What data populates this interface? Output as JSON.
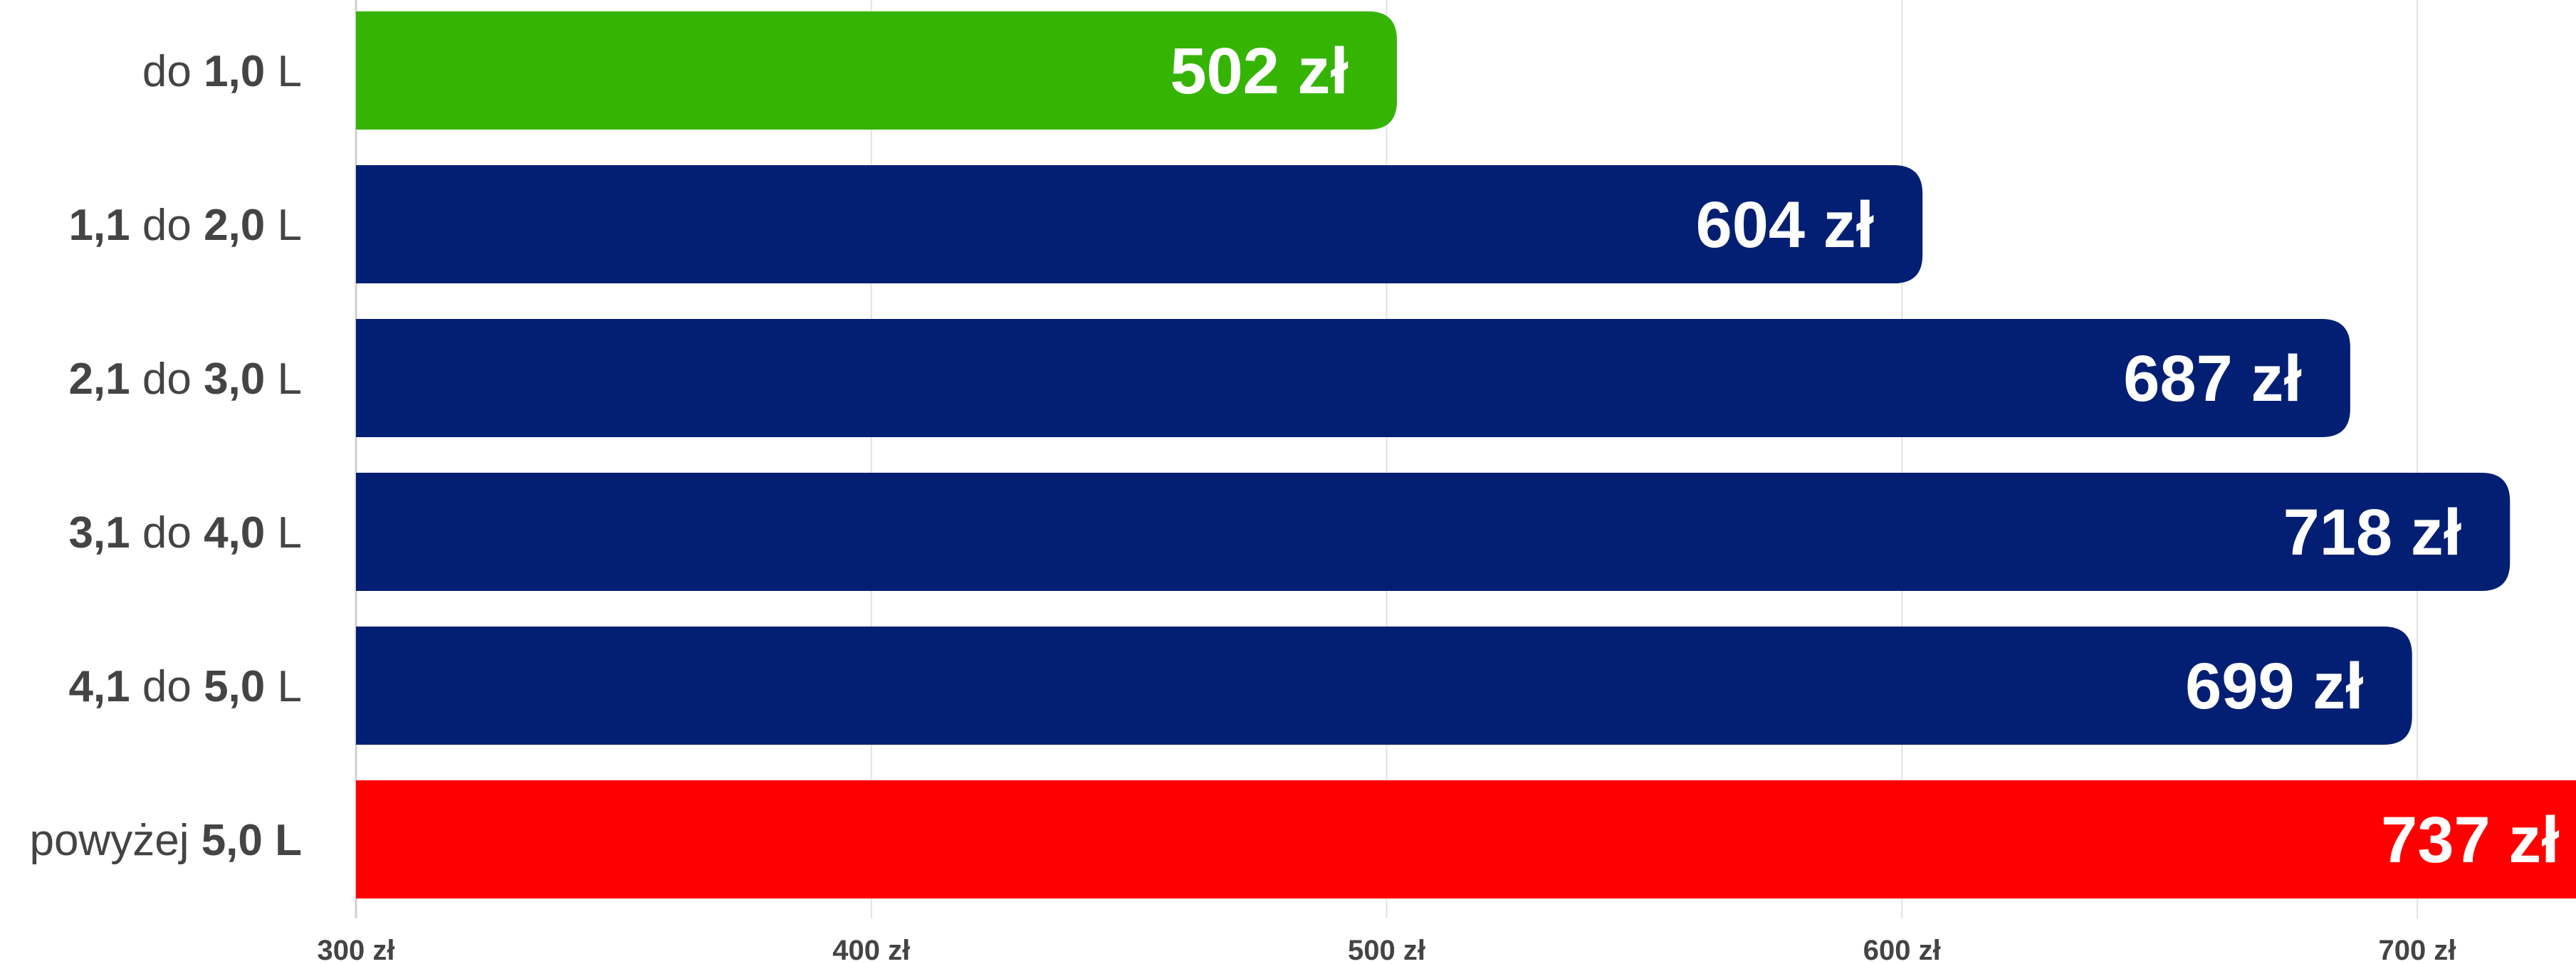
{
  "chart_data": {
    "type": "bar",
    "orientation": "horizontal",
    "title": "",
    "xlabel": "",
    "ylabel": "",
    "xlim": [
      300,
      730
    ],
    "grid": true,
    "legend": "none",
    "ticks": [
      300,
      400,
      500,
      600,
      700
    ],
    "tick_labels": [
      "300 zł",
      "400 zł",
      "500 zł",
      "600 zł",
      "700 zł"
    ],
    "categories": [
      {
        "parts": [
          {
            "text": "do ",
            "bold": false
          },
          {
            "text": "1,0",
            "bold": true
          },
          {
            "text": " L",
            "bold": false
          }
        ]
      },
      {
        "parts": [
          {
            "text": "1,1",
            "bold": true
          },
          {
            "text": " do ",
            "bold": false
          },
          {
            "text": "2,0",
            "bold": true
          },
          {
            "text": " L",
            "bold": false
          }
        ]
      },
      {
        "parts": [
          {
            "text": "2,1",
            "bold": true
          },
          {
            "text": " do ",
            "bold": false
          },
          {
            "text": "3,0",
            "bold": true
          },
          {
            "text": " L",
            "bold": false
          }
        ]
      },
      {
        "parts": [
          {
            "text": "3,1",
            "bold": true
          },
          {
            "text": " do ",
            "bold": false
          },
          {
            "text": "4,0",
            "bold": true
          },
          {
            "text": " L",
            "bold": false
          }
        ]
      },
      {
        "parts": [
          {
            "text": "4,1",
            "bold": true
          },
          {
            "text": " do ",
            "bold": false
          },
          {
            "text": "5,0",
            "bold": true
          },
          {
            "text": " L",
            "bold": false
          }
        ]
      },
      {
        "parts": [
          {
            "text": "powyżej ",
            "bold": false
          },
          {
            "text": "5,0 L",
            "bold": true
          }
        ]
      }
    ],
    "values": [
      502,
      604,
      687,
      718,
      699,
      737
    ],
    "value_labels": [
      "502 zł",
      "604 zł",
      "687 zł",
      "718 zł",
      "699 zł",
      "737 zł"
    ],
    "colors": [
      "#36b404",
      "#031f73",
      "#031f73",
      "#031f73",
      "#031f73",
      "#ff0000"
    ]
  }
}
